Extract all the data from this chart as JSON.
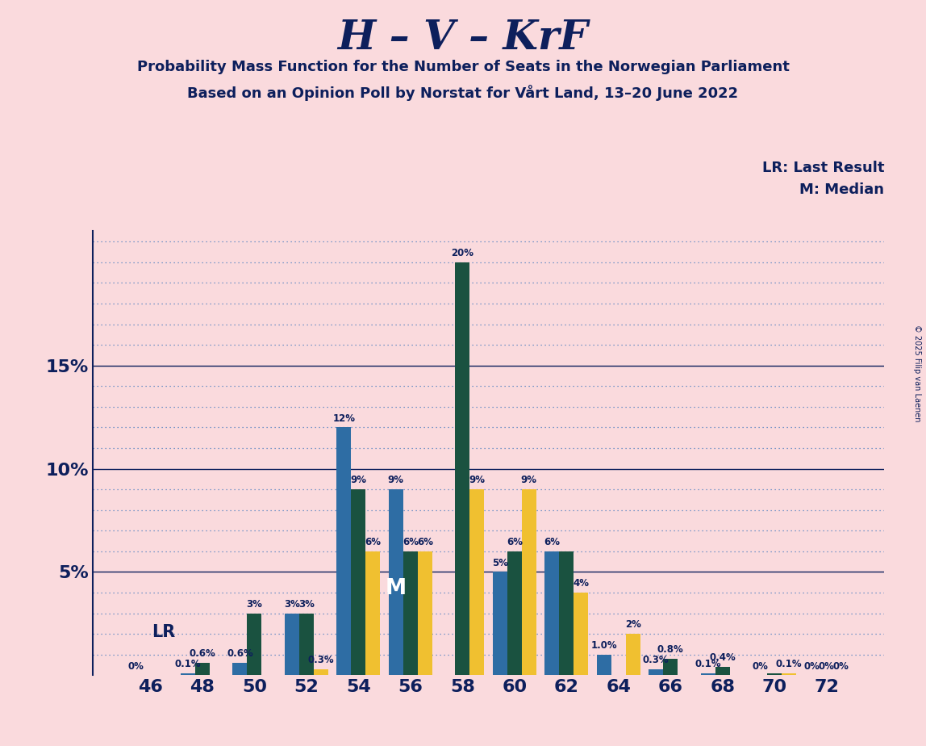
{
  "title": "H – V – KrF",
  "subtitle1": "Probability Mass Function for the Number of Seats in the Norwegian Parliament",
  "subtitle2": "Based on an Opinion Poll by Norstat for Vårt Land, 13–20 June 2022",
  "copyright": "© 2025 Filip van Laenen",
  "legend_lr": "LR: Last Result",
  "legend_m": "M: Median",
  "background_color": "#fadadd",
  "bar_color_blue": "#2e6da4",
  "bar_color_green": "#1a5240",
  "bar_color_yellow": "#f0c030",
  "title_color": "#0d1f5c",
  "seats": [
    46,
    48,
    50,
    52,
    54,
    56,
    58,
    60,
    62,
    64,
    66,
    68,
    70,
    72
  ],
  "blue_values": [
    0.0,
    0.1,
    0.6,
    3.0,
    12.0,
    9.0,
    0.0,
    5.0,
    6.0,
    1.0,
    0.3,
    0.1,
    0.0,
    0.0
  ],
  "green_values": [
    0.0,
    0.6,
    3.0,
    3.0,
    9.0,
    6.0,
    20.0,
    6.0,
    6.0,
    0.0,
    0.8,
    0.4,
    0.1,
    0.0
  ],
  "yellow_values": [
    0.0,
    0.0,
    0.0,
    0.3,
    6.0,
    6.0,
    9.0,
    9.0,
    4.0,
    2.0,
    0.0,
    0.0,
    0.1,
    0.0
  ],
  "blue_labels": [
    "0%",
    "0.1%",
    "0.6%",
    "3%",
    "12%",
    "9%",
    "",
    "5%",
    "6%",
    "1.0%",
    "0.3%",
    "0.1%",
    "0%",
    "0%"
  ],
  "green_labels": [
    "",
    "0.6%",
    "3%",
    "3%",
    "9%",
    "6%",
    "20%",
    "6%",
    "",
    "",
    "0.8%",
    "0.4%",
    "",
    "0%"
  ],
  "yellow_labels": [
    "",
    "",
    "",
    "0.3%",
    "6%",
    "6%",
    "9%",
    "9%",
    "4%",
    "2%",
    "",
    "",
    "0.1%",
    "0%"
  ],
  "lr_idx": 1,
  "m_idx": 5,
  "bar_width": 0.28,
  "ylim": [
    0,
    21.5
  ],
  "yticks": [
    0,
    5,
    10,
    15
  ],
  "ytick_labels": [
    "",
    "5%",
    "10%",
    "15%"
  ],
  "grid_minor_color": "#5080c0",
  "grid_major_color": "#0d1f5c",
  "label_fontsize": 8.5,
  "tick_fontsize": 16,
  "title_fontsize": 36,
  "subtitle_fontsize": 13,
  "legend_fontsize": 13,
  "lr_fontsize": 15,
  "m_fontsize": 19
}
